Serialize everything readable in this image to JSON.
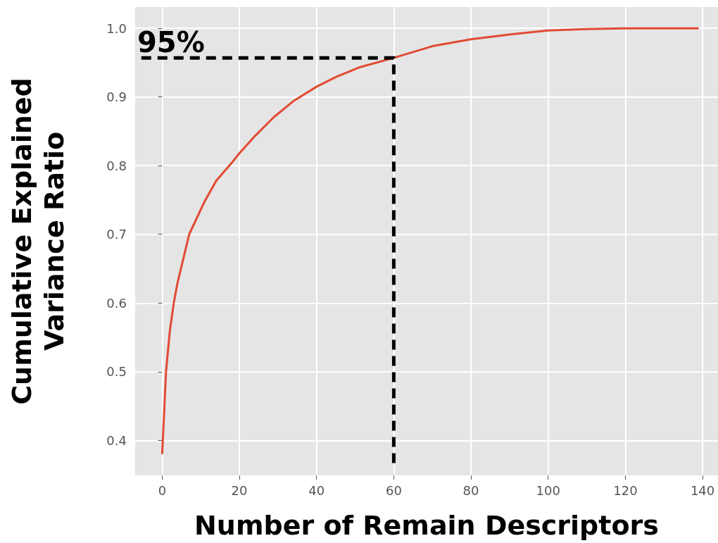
{
  "chart_data": {
    "type": "line",
    "xlabel": "Number of Remain Descriptors",
    "ylabel": "Cumulative Explained\nVariance Ratio",
    "xlim": [
      -7,
      144
    ],
    "xticks": [
      0,
      20,
      40,
      60,
      80,
      100,
      120,
      140
    ],
    "ylim": [
      0.349,
      1.031
    ],
    "yticks": [
      0.4,
      0.5,
      0.6,
      0.7,
      0.8,
      0.9,
      {
        "value": 1,
        "label": "1.0"
      }
    ],
    "grid": true,
    "marker": "none",
    "series": [
      {
        "color": "#e24a33",
        "line_style": "solid",
        "x": [
          0,
          1,
          2,
          3,
          4,
          7,
          11,
          14,
          18,
          20,
          24,
          29,
          34,
          40,
          45,
          51,
          60,
          70,
          80,
          90,
          100,
          110,
          120,
          139
        ],
        "values": [
          0.38,
          0.5,
          0.56,
          0.6,
          0.63,
          0.7,
          0.748,
          0.778,
          0.804,
          0.818,
          0.843,
          0.871,
          0.894,
          0.915,
          0.929,
          0.943,
          0.957,
          0.974,
          0.984,
          0.991,
          0.997,
          0.999,
          1.0,
          1.0
        ]
      },
      {
        "color": "#000000",
        "line_style": "dashed",
        "x": [
          -5.4,
          60,
          60
        ],
        "values": [
          0.957,
          0.957,
          0.363
        ]
      }
    ],
    "annotations": [
      "95%"
    ]
  }
}
